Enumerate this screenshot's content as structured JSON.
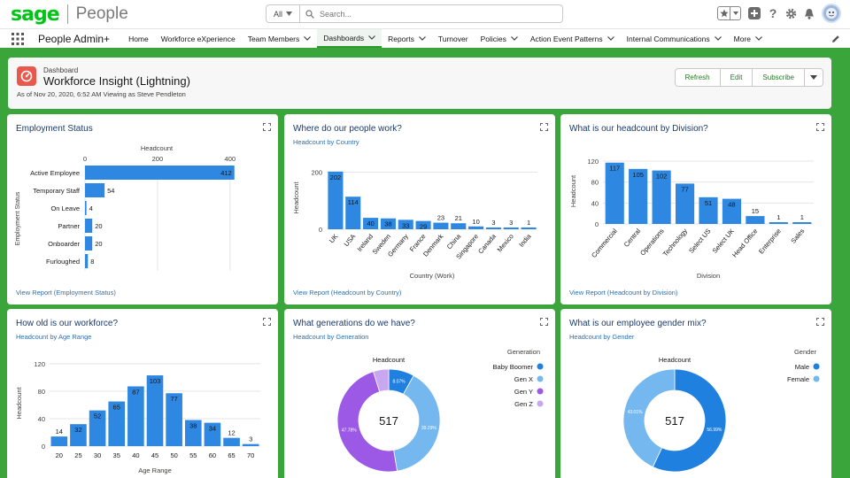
{
  "header": {
    "logo_primary": "sage",
    "logo_secondary": "People",
    "search_scope": "All",
    "search_placeholder": "Search..."
  },
  "nav": {
    "app_name": "People Admin+",
    "items": [
      {
        "label": "Home",
        "dropdown": false
      },
      {
        "label": "Workforce eXperience",
        "dropdown": false
      },
      {
        "label": "Team Members",
        "dropdown": true
      },
      {
        "label": "Dashboards",
        "dropdown": true,
        "active": true
      },
      {
        "label": "Reports",
        "dropdown": true
      },
      {
        "label": "Turnover",
        "dropdown": false
      },
      {
        "label": "Policies",
        "dropdown": true
      },
      {
        "label": "Action Event Patterns",
        "dropdown": true
      },
      {
        "label": "Internal Communications",
        "dropdown": true
      },
      {
        "label": "More",
        "dropdown": true
      }
    ]
  },
  "dashboard": {
    "label": "Dashboard",
    "title": "Workforce Insight (Lightning)",
    "meta": "As of Nov 20, 2020, 6:52 AM Viewing as Steve Pendleton",
    "buttons": [
      "Refresh",
      "Edit",
      "Subscribe"
    ]
  },
  "colors": {
    "bar": "#2e87e0",
    "gen_baby_boomer": "#1f80e0",
    "gen_x": "#75b8f0",
    "gen_y": "#9b59e6",
    "gen_z": "#c9a6f0",
    "male": "#1f80e0",
    "female": "#75b8f0"
  },
  "widgets": {
    "employment": {
      "title": "Employment Status",
      "subtitle": "",
      "link": "View Report (Employment Status)"
    },
    "country": {
      "title": "Where do our people work?",
      "subtitle": "Headcount by Country",
      "link": "View Report (Headcount by Country)"
    },
    "division": {
      "title": "What is our headcount by Division?",
      "subtitle": "",
      "link": "View Report (Headcount by Division)"
    },
    "age": {
      "title": "How old is our workforce?",
      "subtitle": "Headcount by Age Range",
      "link": ""
    },
    "generation": {
      "title": "What generations do we have?",
      "subtitle": "Headcount by Generation",
      "link": ""
    },
    "gender": {
      "title": "What is our employee gender mix?",
      "subtitle": "Headcount by Gender",
      "link": ""
    }
  },
  "chart_data": [
    {
      "id": "employment",
      "type": "bar",
      "orientation": "horizontal",
      "title": "",
      "xlabel": "Headcount",
      "ylabel": "Employment Status",
      "xticks": [
        0,
        200,
        400
      ],
      "xlim": [
        0,
        420
      ],
      "categories": [
        "Active Employee",
        "Temporary Staff",
        "On Leave",
        "Partner",
        "Onboarder",
        "Furloughed"
      ],
      "values": [
        412,
        54,
        4,
        20,
        20,
        8
      ]
    },
    {
      "id": "country",
      "type": "bar",
      "title": "",
      "xlabel": "Country (Work)",
      "ylabel": "Headcount",
      "yticks": [
        0,
        200
      ],
      "ylim": [
        0,
        220
      ],
      "categories": [
        "UK",
        "USA",
        "Ireland",
        "Sweden",
        "Germany",
        "France",
        "Denmark",
        "China",
        "Singapore",
        "Canada",
        "Mexico",
        "India"
      ],
      "values": [
        202,
        114,
        40,
        38,
        33,
        29,
        23,
        21,
        10,
        3,
        3,
        1
      ]
    },
    {
      "id": "division",
      "type": "bar",
      "title": "",
      "xlabel": "Division",
      "ylabel": "Headcount",
      "yticks": [
        0,
        40,
        80,
        120
      ],
      "ylim": [
        0,
        125
      ],
      "categories": [
        "Commercial",
        "Central",
        "Operations",
        "Technology",
        "Select US",
        "Select UK",
        "Head Office",
        "Enterprise",
        "Sales"
      ],
      "values": [
        117,
        105,
        102,
        77,
        51,
        48,
        15,
        1,
        1
      ]
    },
    {
      "id": "age",
      "type": "bar",
      "title": "",
      "xlabel": "Age Range",
      "ylabel": "Headcount",
      "yticks": [
        0,
        40,
        80,
        120
      ],
      "ylim": [
        0,
        125
      ],
      "categories": [
        "20",
        "25",
        "30",
        "35",
        "40",
        "45",
        "50",
        "55",
        "60",
        "65",
        "70"
      ],
      "values": [
        14,
        32,
        52,
        65,
        87,
        103,
        77,
        38,
        34,
        12,
        3
      ]
    },
    {
      "id": "generation",
      "type": "pie",
      "donut": true,
      "title": "Headcount",
      "total": "517",
      "legend_title": "Generation",
      "legend_position": "top-right",
      "series": [
        {
          "name": "Baby Boomer",
          "value": 8.07,
          "label": "8.07%",
          "color": "#1f80e0"
        },
        {
          "name": "Gen X",
          "value": 39.29,
          "label": "39.29%",
          "color": "#75b8f0"
        },
        {
          "name": "Gen Y",
          "value": 47.78,
          "label": "47.78%",
          "color": "#9b59e6"
        },
        {
          "name": "Gen Z",
          "value": 4.86,
          "label": "",
          "color": "#c9a6f0"
        }
      ]
    },
    {
      "id": "gender",
      "type": "pie",
      "donut": true,
      "title": "Headcount",
      "total": "517",
      "legend_title": "Gender",
      "legend_position": "top-right",
      "series": [
        {
          "name": "Male",
          "value": 56.99,
          "label": "56.99%",
          "color": "#1f80e0"
        },
        {
          "name": "Female",
          "value": 43.01,
          "label": "43.01%",
          "color": "#75b8f0"
        }
      ]
    }
  ]
}
